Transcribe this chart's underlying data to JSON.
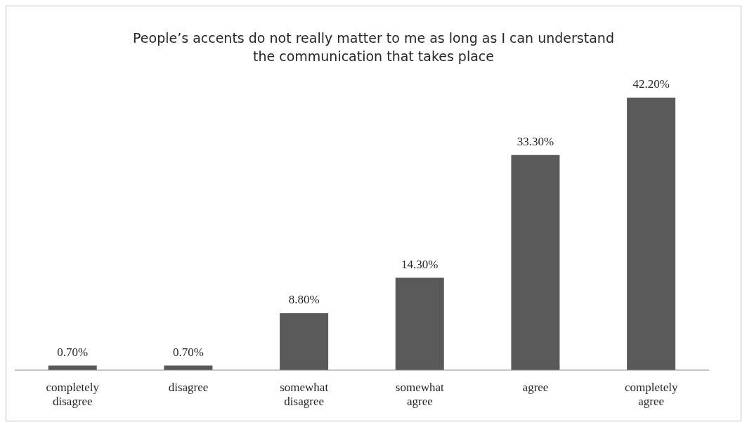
{
  "chart_data": {
    "type": "bar",
    "title": "People’s accents do not really matter to me as long as I can understand the communication that takes place",
    "categories": [
      "completely disagree",
      "disagree",
      "somewhat disagree",
      "somewhat agree",
      "agree",
      "completely agree"
    ],
    "values": [
      0.7,
      0.7,
      8.8,
      14.3,
      33.3,
      42.2
    ],
    "value_labels": [
      "0.70%",
      "0.70%",
      "8.80%",
      "14.30%",
      "33.30%",
      "42.20%"
    ],
    "color": "#595959",
    "grid": false,
    "legend": false
  }
}
